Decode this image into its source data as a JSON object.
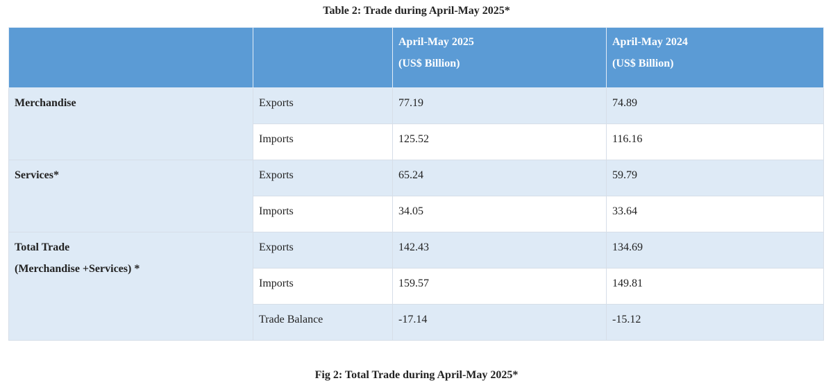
{
  "table": {
    "caption": "Table 2: Trade during April-May 2025*",
    "headers": {
      "col3": {
        "line1": "April-May 2025",
        "line2": "(US$ Billion)"
      },
      "col4": {
        "line1": "April-May 2024",
        "line2": "(US$ Billion)"
      }
    },
    "groups": {
      "merchandise": {
        "label": "Merchandise",
        "rows": [
          {
            "type": "Exports",
            "v2025": "77.19",
            "v2024": "74.89"
          },
          {
            "type": "Imports",
            "v2025": "125.52",
            "v2024": "116.16"
          }
        ]
      },
      "services": {
        "label": "Services*",
        "rows": [
          {
            "type": "Exports",
            "v2025": "65.24",
            "v2024": "59.79"
          },
          {
            "type": "Imports",
            "v2025": "34.05",
            "v2024": "33.64"
          }
        ]
      },
      "total": {
        "label_line1": "Total Trade",
        "label_line2": "(Merchandise +Services) *",
        "rows": [
          {
            "type": "Exports",
            "v2025": "142.43",
            "v2024": "134.69"
          },
          {
            "type": "Imports",
            "v2025": "159.57",
            "v2024": "149.81"
          },
          {
            "type": "Trade Balance",
            "v2025": "-17.14",
            "v2024": "-15.12"
          }
        ]
      }
    }
  },
  "figure": {
    "caption": "Fig 2: Total Trade during April-May 2025*"
  },
  "colors": {
    "header_bg": "#5b9bd5",
    "shade_bg": "#deeaf6",
    "plain_bg": "#ffffff"
  }
}
